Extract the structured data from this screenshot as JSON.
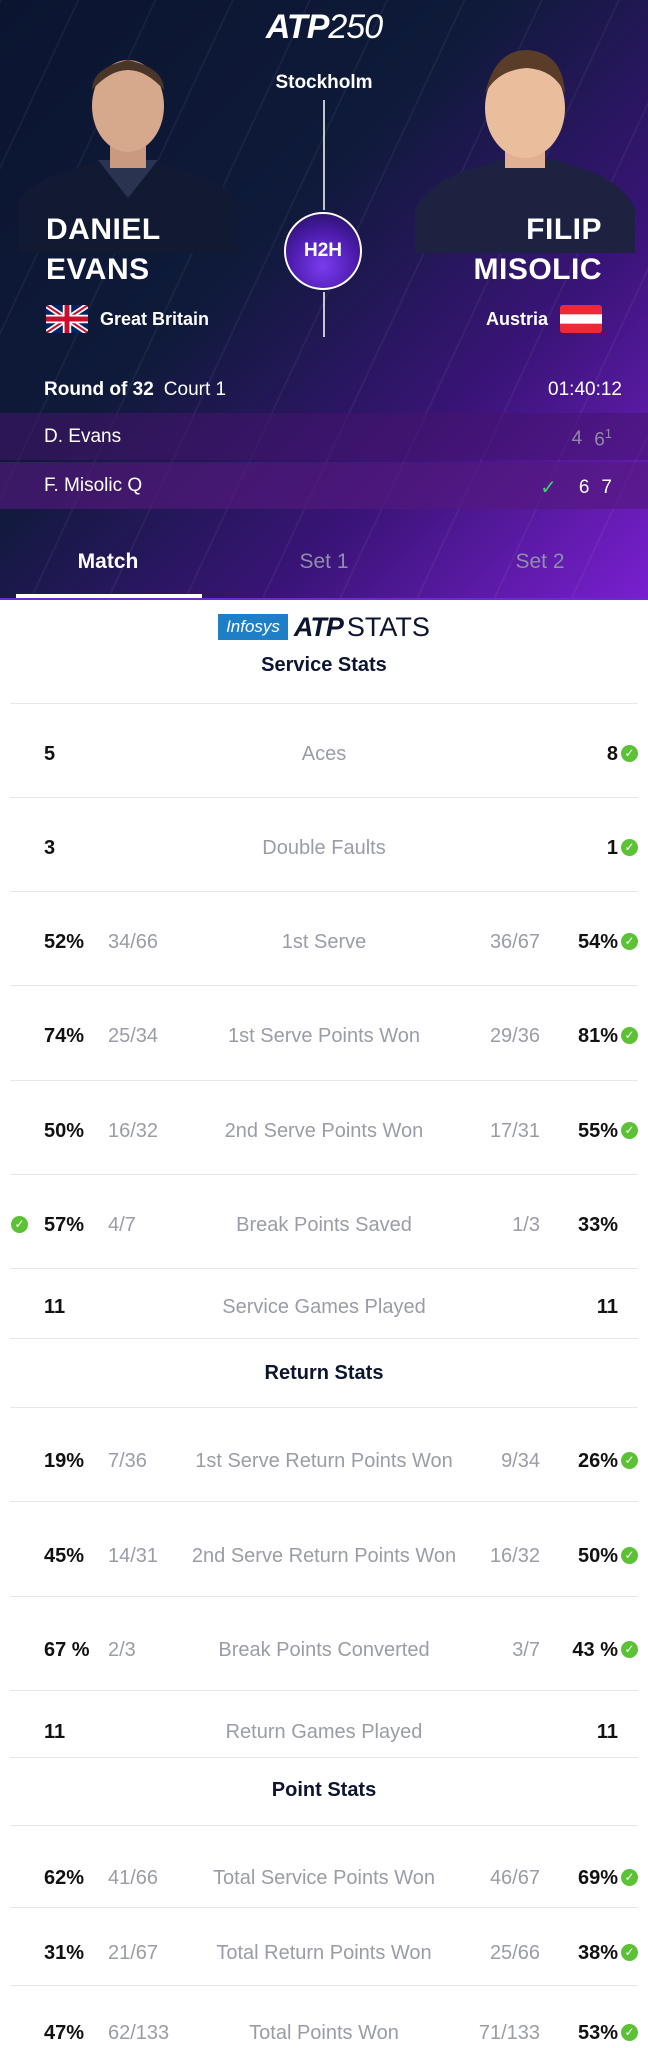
{
  "header": {
    "logo_prefix": "ATP",
    "logo_number": "250",
    "city": "Stockholm",
    "h2h_label": "H2H",
    "player1": {
      "first": "DANIEL",
      "last": "EVANS",
      "country": "Great Britain"
    },
    "player2": {
      "first": "FILIP",
      "last": "MISOLIC",
      "country": "Austria"
    },
    "round": "Round of 32",
    "court": "Court 1",
    "duration": "01:40:12"
  },
  "scoreboard": {
    "row1": {
      "name": "D. Evans",
      "set1": "4",
      "set2": "6",
      "set2_tiebreak": "1"
    },
    "row2": {
      "name": "F. Misolic  Q",
      "set1": "6",
      "set2": "7"
    }
  },
  "tabs": [
    {
      "label": "Match",
      "active": true
    },
    {
      "label": "Set 1",
      "active": false
    },
    {
      "label": "Set 2",
      "active": false
    }
  ],
  "stats_brand": {
    "sponsor": "Infosys",
    "atp": "ATP",
    "stats": "STATS"
  },
  "sections": [
    {
      "title": "Service Stats"
    },
    {
      "title": "Return Stats"
    },
    {
      "title": "Point Stats"
    }
  ],
  "stats": [
    {
      "label": "Aces",
      "left": "5",
      "left_ratio": "",
      "right_ratio": "",
      "right": "8",
      "winner": "right"
    },
    {
      "label": "Double Faults",
      "left": "3",
      "left_ratio": "",
      "right_ratio": "",
      "right": "1",
      "winner": "right"
    },
    {
      "label": "1st Serve",
      "left": "52%",
      "left_ratio": "34/66",
      "right_ratio": "36/67",
      "right": "54%",
      "winner": "right"
    },
    {
      "label": "1st Serve Points Won",
      "left": "74%",
      "left_ratio": "25/34",
      "right_ratio": "29/36",
      "right": "81%",
      "winner": "right"
    },
    {
      "label": "2nd Serve Points Won",
      "left": "50%",
      "left_ratio": "16/32",
      "right_ratio": "17/31",
      "right": "55%",
      "winner": "right"
    },
    {
      "label": "Break Points Saved",
      "left": "57%",
      "left_ratio": "4/7",
      "right_ratio": "1/3",
      "right": "33%",
      "winner": "left"
    },
    {
      "label": "Service Games Played",
      "left": "11",
      "left_ratio": "",
      "right_ratio": "",
      "right": "11",
      "winner": "none"
    },
    {
      "label": "1st Serve Return Points Won",
      "left": "19%",
      "left_ratio": "7/36",
      "right_ratio": "9/34",
      "right": "26%",
      "winner": "right"
    },
    {
      "label": "2nd Serve Return Points Won",
      "left": "45%",
      "left_ratio": "14/31",
      "right_ratio": "16/32",
      "right": "50%",
      "winner": "right"
    },
    {
      "label": "Break Points Converted",
      "left": "67 %",
      "left_ratio": "2/3",
      "right_ratio": "3/7",
      "right": "43 %",
      "winner": "right"
    },
    {
      "label": "Return Games Played",
      "left": "11",
      "left_ratio": "",
      "right_ratio": "",
      "right": "11",
      "winner": "none"
    },
    {
      "label": "Total Service Points Won",
      "left": "62%",
      "left_ratio": "41/66",
      "right_ratio": "46/67",
      "right": "69%",
      "winner": "right"
    },
    {
      "label": "Total Return Points Won",
      "left": "31%",
      "left_ratio": "21/67",
      "right_ratio": "25/66",
      "right": "38%",
      "winner": "right"
    },
    {
      "label": "Total Points Won",
      "left": "47%",
      "left_ratio": "62/133",
      "right_ratio": "71/133",
      "right": "53%",
      "winner": "right"
    }
  ],
  "colors": {
    "win_check": "#5bc236",
    "accent_purple": "#6b2ad4",
    "navy": "#0b1530"
  }
}
